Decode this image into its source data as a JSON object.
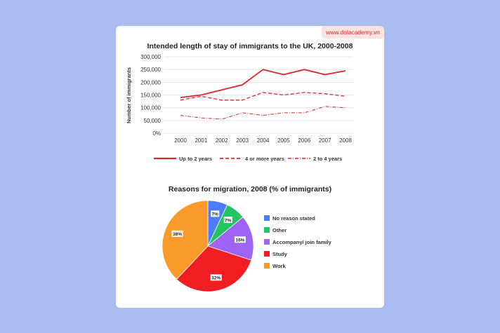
{
  "brand": "www.dolacademy.vn",
  "chart_data": [
    {
      "type": "line",
      "title": "Intended length of stay of immigrants to the UK, 2000-2008",
      "xlabel": "",
      "ylabel": "Number of immigrants",
      "x": [
        "2000",
        "2001",
        "2002",
        "2003",
        "2004",
        "2005",
        "2006",
        "2007",
        "2008"
      ],
      "ylim": [
        0,
        300000
      ],
      "yticks": [
        "0%",
        "50,000",
        "100,000",
        "150,000",
        "200,000",
        "250,000",
        "300,000"
      ],
      "grid": true,
      "legend_position": "bottom",
      "series": [
        {
          "name": "Up to 2 years",
          "style": "solid",
          "color": "#e0262c",
          "values": [
            140000,
            150000,
            170000,
            190000,
            250000,
            230000,
            250000,
            230000,
            245000
          ]
        },
        {
          "name": "4 or more years",
          "style": "dashed",
          "color": "#e0262c",
          "values": [
            130000,
            145000,
            130000,
            130000,
            160000,
            150000,
            160000,
            155000,
            145000
          ]
        },
        {
          "name": "2 to 4 years",
          "style": "dashdot",
          "color": "#e0262c",
          "values": [
            70000,
            60000,
            55000,
            80000,
            70000,
            80000,
            80000,
            105000,
            100000
          ]
        }
      ]
    },
    {
      "type": "pie",
      "title": "Reasons for migration, 2008 (% of immigrants)",
      "legend_position": "right",
      "slices": [
        {
          "label": "No reason stated",
          "value": 7,
          "text": "7%",
          "color": "#4f7cff"
        },
        {
          "label": "Other",
          "value": 7,
          "text": "7%",
          "color": "#22c55e"
        },
        {
          "label": "Accompany/ join family",
          "value": 16,
          "text": "16%",
          "color": "#a064f5"
        },
        {
          "label": "Study",
          "value": 32,
          "text": "32%",
          "color": "#f01d22"
        },
        {
          "label": "Work",
          "value": 38,
          "text": "38%",
          "color": "#f99a2b"
        }
      ]
    }
  ]
}
